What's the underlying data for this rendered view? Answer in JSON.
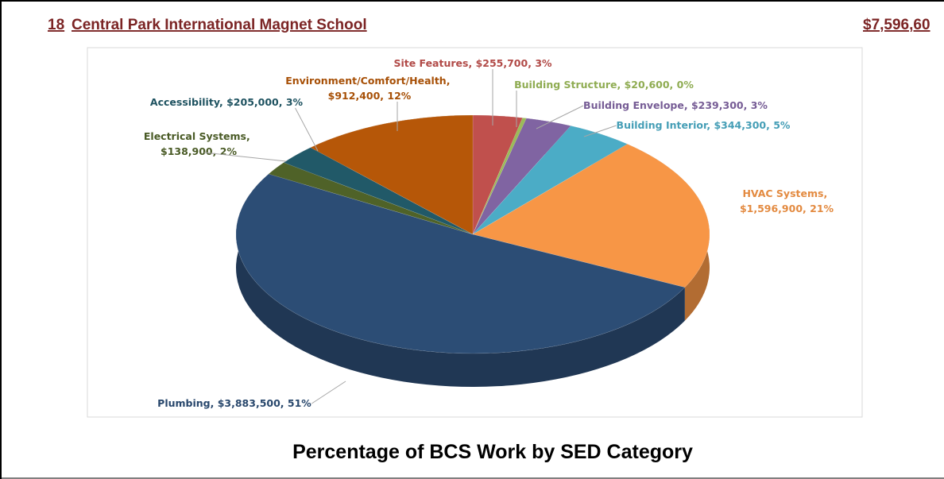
{
  "header": {
    "number": "18",
    "school": "Central Park International Magnet School",
    "amount": "$7,596,60"
  },
  "chart_data": {
    "type": "pie",
    "title": "Percentage of BCS Work by SED Category",
    "categories": [
      "Site Features",
      "Building Structure",
      "Building Envelope",
      "Building Interior",
      "HVAC Systems",
      "Plumbing",
      "Electrical Systems",
      "Accessibility",
      "Environment/Comfort/Health"
    ],
    "values": [
      255700,
      20600,
      239300,
      344300,
      1596900,
      3883500,
      138900,
      205000,
      912400
    ],
    "value_labels": [
      "$255,700",
      "$20,600",
      "$239,300",
      "$344,300",
      "$1,596,900",
      "$3,883,500",
      "$138,900",
      "$205,000",
      "$912,400"
    ],
    "percent_labels": [
      "3%",
      "0%",
      "3%",
      "5%",
      "21%",
      "51%",
      "2%",
      "3%",
      "12%"
    ],
    "colors": [
      "#c0504d",
      "#9bbb59",
      "#8064a2",
      "#4bacc6",
      "#f79646",
      "#2c4d75",
      "#4f6228",
      "#215968",
      "#b65708"
    ]
  }
}
